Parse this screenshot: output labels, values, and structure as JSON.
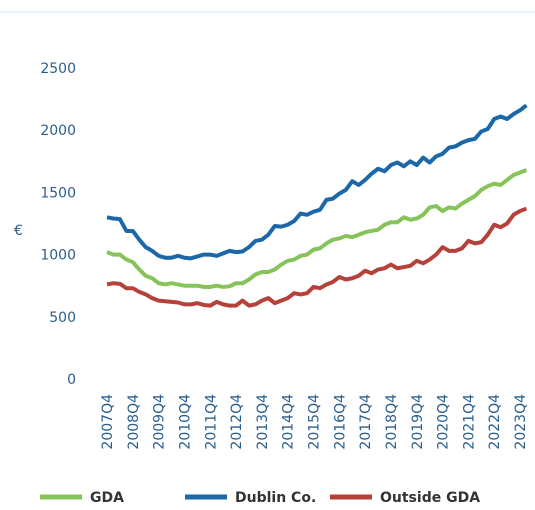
{
  "chart_data": {
    "type": "line",
    "y_label": "€",
    "categories": [
      "2007Q4",
      null,
      null,
      null,
      "2008Q4",
      null,
      null,
      null,
      "2009Q4",
      null,
      null,
      null,
      "2010Q4",
      null,
      null,
      null,
      "2011Q4",
      null,
      null,
      null,
      "2012Q4",
      null,
      null,
      null,
      "2013Q4",
      null,
      null,
      null,
      "2014Q4",
      null,
      null,
      null,
      "2015Q4",
      null,
      null,
      null,
      "2016Q4",
      null,
      null,
      null,
      "2017Q4",
      null,
      null,
      null,
      "2018Q4",
      null,
      null,
      null,
      "2019Q4",
      null,
      null,
      null,
      "2020Q4",
      null,
      null,
      null,
      "2021Q4",
      null,
      null,
      null,
      "2022Q4",
      null,
      null,
      null,
      "2023Q4",
      null
    ],
    "series": [
      {
        "name": "GDA",
        "color": "#86c45a",
        "values": [
          1020,
          1000,
          1000,
          960,
          940,
          880,
          830,
          810,
          770,
          760,
          770,
          760,
          750,
          750,
          750,
          740,
          740,
          750,
          740,
          745,
          770,
          770,
          800,
          840,
          860,
          860,
          880,
          920,
          950,
          960,
          990,
          1000,
          1040,
          1050,
          1090,
          1120,
          1130,
          1150,
          1140,
          1160,
          1180,
          1190,
          1200,
          1240,
          1260,
          1260,
          1300,
          1280,
          1290,
          1320,
          1380,
          1390,
          1350,
          1380,
          1370,
          1410,
          1440,
          1470,
          1520,
          1550,
          1570,
          1560,
          1600,
          1640,
          1660,
          1680
        ]
      },
      {
        "name": "Dublin Co.",
        "color": "#1b67a8",
        "values": [
          1300,
          1290,
          1285,
          1190,
          1190,
          1120,
          1060,
          1030,
          990,
          975,
          975,
          990,
          975,
          970,
          985,
          1000,
          1000,
          990,
          1010,
          1030,
          1020,
          1025,
          1060,
          1110,
          1120,
          1160,
          1230,
          1225,
          1240,
          1270,
          1330,
          1320,
          1345,
          1360,
          1440,
          1450,
          1490,
          1520,
          1590,
          1560,
          1600,
          1650,
          1690,
          1670,
          1720,
          1740,
          1710,
          1750,
          1720,
          1780,
          1740,
          1790,
          1810,
          1860,
          1870,
          1900,
          1920,
          1930,
          1990,
          2010,
          2090,
          2110,
          2090,
          2130,
          2160,
          2200
        ]
      },
      {
        "name": "Outside GDA",
        "color": "#b5413b",
        "values": [
          760,
          770,
          765,
          730,
          730,
          700,
          680,
          650,
          630,
          625,
          620,
          615,
          600,
          600,
          610,
          595,
          590,
          620,
          600,
          590,
          590,
          630,
          590,
          600,
          630,
          650,
          610,
          630,
          650,
          690,
          680,
          690,
          740,
          730,
          760,
          780,
          820,
          800,
          810,
          830,
          870,
          850,
          880,
          890,
          920,
          890,
          900,
          910,
          950,
          930,
          960,
          1000,
          1060,
          1030,
          1030,
          1050,
          1110,
          1090,
          1100,
          1160,
          1240,
          1220,
          1250,
          1320,
          1350,
          1370
        ]
      }
    ],
    "ylim": [
      0,
      2500
    ],
    "yticks": [
      0,
      500,
      1000,
      1500,
      2000,
      2500
    ]
  }
}
